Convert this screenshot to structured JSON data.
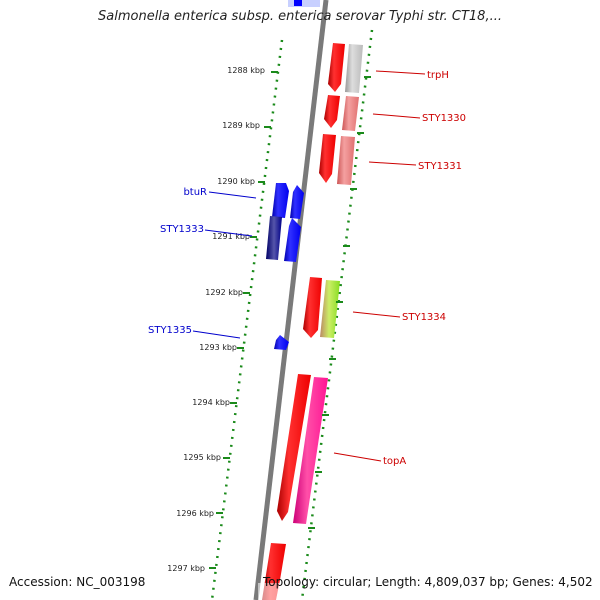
{
  "title": "Salmonella enterica subsp. enterica serovar Typhi str. CT18,...",
  "footer": {
    "accession": "Accession: NC_003198",
    "topology": "Topology: circular; Length: 4,809,037 bp; Genes: 4,502"
  },
  "scale_labels": [
    "1288 kbp",
    "1289 kbp",
    "1290 kbp",
    "1291 kbp",
    "1292 kbp",
    "1293 kbp",
    "1294 kbp",
    "1295 kbp",
    "1296 kbp",
    "1297 kbp"
  ],
  "gene_labels": {
    "reverse_strand": [
      "btuR",
      "STY1333",
      "STY1335"
    ],
    "forward_strand": [
      "trpH",
      "STY1330",
      "STY1331",
      "STY1334",
      "topA"
    ]
  },
  "colors": {
    "backbone": "#808080",
    "scale_dots": "#1a8a1a",
    "reverse_gene": "#0000ff",
    "reverse_label": "#0000cc",
    "forward_gene": "#ff0000",
    "forward_label": "#cc0000",
    "grey_gene": "#bbbbbb",
    "pink_gene": "#ee7777",
    "green_gene": "#99dd33",
    "magenta_gene": "#ff1493"
  }
}
